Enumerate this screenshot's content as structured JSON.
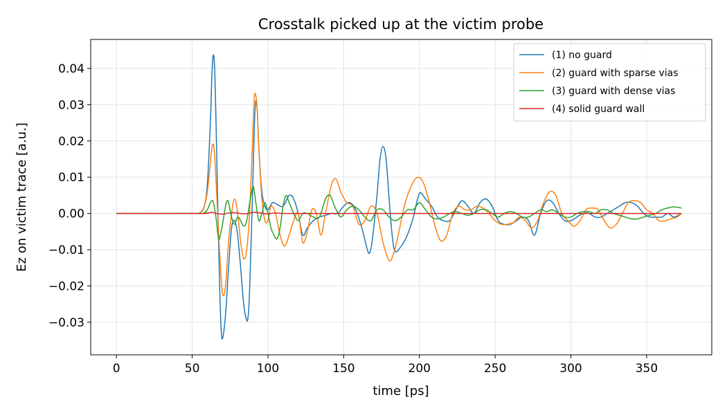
{
  "chart_data": {
    "type": "line",
    "title": "Crosstalk picked up at the victim probe",
    "xlabel": "time [ps]",
    "ylabel": "Ez on victim trace [a.u.]",
    "xlim": [
      -17,
      393
    ],
    "ylim": [
      -0.039,
      0.048
    ],
    "xticks": [
      0,
      50,
      100,
      150,
      200,
      250,
      300,
      350
    ],
    "xtick_labels": [
      "0",
      "50",
      "100",
      "150",
      "200",
      "250",
      "300",
      "350"
    ],
    "yticks": [
      0.04,
      0.03,
      0.02,
      0.01,
      0.0,
      -0.01,
      -0.02,
      -0.03
    ],
    "ytick_labels": [
      "0.04",
      "0.03",
      "0.02",
      "0.01",
      "0.00",
      "−0.01",
      "−0.02",
      "−0.03"
    ],
    "grid": true,
    "legend_position": "top-right",
    "series": [
      {
        "name": "(1) no guard",
        "color": "#1f77b4",
        "x": [
          0,
          50,
          55,
          58,
          60,
          62,
          63,
          64,
          65,
          66,
          67,
          68,
          69,
          70,
          72,
          74,
          76,
          78,
          80,
          82,
          84,
          86,
          87,
          88,
          90,
          91,
          92,
          93,
          94,
          96,
          98,
          100,
          103,
          106,
          110,
          114,
          117,
          120,
          123,
          126,
          130,
          134,
          138,
          142,
          146,
          150,
          154,
          158,
          162,
          165,
          167,
          169,
          172,
          174,
          176,
          178,
          180,
          182,
          184,
          188,
          192,
          196,
          200,
          204,
          208,
          212,
          216,
          220,
          224,
          228,
          232,
          236,
          240,
          244,
          248,
          252,
          256,
          260,
          264,
          268,
          272,
          276,
          280,
          284,
          288,
          292,
          296,
          300,
          304,
          308,
          312,
          316,
          320,
          324,
          328,
          332,
          336,
          340,
          344,
          348,
          352,
          356,
          360,
          364,
          368,
          373
        ],
        "y": [
          0,
          0,
          0.0002,
          0.002,
          0.008,
          0.025,
          0.038,
          0.0438,
          0.038,
          0.02,
          0.0,
          -0.018,
          -0.031,
          -0.0345,
          -0.028,
          -0.015,
          -0.004,
          -0.002,
          -0.006,
          -0.015,
          -0.025,
          -0.0295,
          -0.028,
          -0.02,
          0.008,
          0.024,
          0.031,
          0.028,
          0.018,
          0.006,
          0.002,
          0.001,
          0.003,
          0.0025,
          0.002,
          0.005,
          0.004,
          0.0,
          -0.006,
          -0.004,
          -0.002,
          -0.001,
          -0.0005,
          0.0,
          0.0,
          0.002,
          0.003,
          0.001,
          -0.004,
          -0.009,
          -0.011,
          -0.007,
          0.005,
          0.015,
          0.0185,
          0.015,
          0.004,
          -0.006,
          -0.0105,
          -0.009,
          -0.006,
          -0.001,
          0.0055,
          0.004,
          0.002,
          -0.001,
          -0.002,
          -0.002,
          0.001,
          0.0035,
          0.002,
          0.0,
          0.003,
          0.004,
          0.002,
          -0.002,
          -0.003,
          -0.003,
          -0.002,
          -0.001,
          -0.002,
          -0.006,
          0.0,
          0.0035,
          0.003,
          0.0,
          -0.002,
          -0.002,
          -0.001,
          0.0,
          0.0,
          -0.001,
          -0.001,
          0.0,
          0.001,
          0.002,
          0.003,
          0.003,
          0.002,
          0.0,
          -0.001,
          -0.001,
          -0.001,
          0.0,
          -0.001,
          0.0
        ]
      },
      {
        "name": "(2) guard with sparse vias",
        "color": "#ff7f0e",
        "x": [
          0,
          50,
          55,
          58,
          60,
          62,
          63,
          64,
          65,
          66,
          68,
          70,
          72,
          74,
          76,
          78,
          80,
          82,
          84,
          86,
          88,
          90,
          91,
          92,
          93,
          94,
          96,
          98,
          100,
          102,
          105,
          108,
          111,
          114,
          117,
          120,
          123,
          126,
          129,
          132,
          135,
          138,
          142,
          145,
          148,
          152,
          156,
          160,
          164,
          168,
          172,
          176,
          180,
          183,
          186,
          190,
          194,
          198,
          202,
          206,
          210,
          214,
          218,
          222,
          226,
          230,
          234,
          238,
          242,
          246,
          250,
          254,
          258,
          262,
          266,
          270,
          274,
          278,
          282,
          286,
          290,
          294,
          298,
          302,
          306,
          310,
          314,
          318,
          322,
          326,
          330,
          334,
          338,
          342,
          346,
          350,
          354,
          358,
          362,
          366,
          370,
          373
        ],
        "y": [
          0,
          0,
          0.0002,
          0.002,
          0.006,
          0.014,
          0.018,
          0.019,
          0.015,
          0.007,
          -0.01,
          -0.022,
          -0.02,
          -0.008,
          0.0,
          0.004,
          0.0,
          -0.008,
          -0.0125,
          -0.01,
          0.001,
          0.022,
          0.032,
          0.0325,
          0.028,
          0.018,
          0.004,
          -0.002,
          -0.002,
          0.002,
          0.0,
          -0.006,
          -0.009,
          -0.006,
          -0.002,
          0.0,
          -0.008,
          -0.005,
          0.001,
          0.0,
          -0.006,
          0.0,
          0.008,
          0.0095,
          0.006,
          0.003,
          0.002,
          -0.003,
          -0.002,
          0.002,
          0.0,
          -0.008,
          -0.013,
          -0.011,
          -0.006,
          0.002,
          0.007,
          0.0098,
          0.009,
          0.004,
          -0.003,
          -0.0075,
          -0.006,
          0.0,
          0.002,
          0.001,
          0.001,
          0.002,
          0.0015,
          0.0,
          -0.002,
          -0.003,
          -0.003,
          -0.0025,
          -0.001,
          -0.002,
          -0.004,
          -0.002,
          0.003,
          0.006,
          0.005,
          0.0,
          -0.002,
          -0.0035,
          -0.002,
          0.001,
          0.0015,
          0.001,
          -0.002,
          -0.004,
          -0.003,
          0.0,
          0.003,
          0.0035,
          0.003,
          0.001,
          0.0,
          -0.002,
          -0.002,
          -0.0015,
          -0.001,
          0.0
        ]
      },
      {
        "name": "(3) guard with dense vias",
        "color": "#2ca02c",
        "x": [
          0,
          55,
          58,
          60,
          62,
          63,
          64,
          66,
          67,
          68,
          70,
          72,
          73,
          74,
          76,
          78,
          80,
          82,
          84,
          86,
          88,
          90,
          91,
          92,
          94,
          96,
          98,
          100,
          102,
          104,
          106,
          108,
          110,
          112,
          114,
          117,
          120,
          123,
          126,
          130,
          134,
          138,
          141,
          144,
          148,
          152,
          156,
          160,
          164,
          168,
          172,
          176,
          180,
          184,
          188,
          192,
          196,
          200,
          204,
          208,
          212,
          216,
          220,
          224,
          228,
          232,
          236,
          240,
          244,
          248,
          252,
          256,
          260,
          264,
          268,
          272,
          276,
          280,
          284,
          288,
          292,
          296,
          300,
          304,
          308,
          312,
          316,
          320,
          324,
          328,
          332,
          336,
          340,
          344,
          348,
          352,
          356,
          360,
          364,
          368,
          373
        ],
        "y": [
          0,
          0,
          0.0003,
          0.001,
          0.003,
          0.0035,
          0.003,
          -0.002,
          -0.006,
          -0.007,
          -0.003,
          0.002,
          0.0035,
          0.003,
          -0.001,
          -0.003,
          -0.001,
          -0.002,
          -0.0035,
          -0.002,
          0.003,
          0.0075,
          0.006,
          0.003,
          -0.002,
          0.0,
          0.003,
          0.0,
          -0.004,
          -0.006,
          -0.007,
          -0.004,
          0.002,
          0.005,
          0.003,
          0.0,
          -0.002,
          0.0,
          0.0,
          -0.001,
          -0.001,
          0.004,
          0.005,
          0.002,
          -0.001,
          0.001,
          0.002,
          0.001,
          -0.001,
          -0.002,
          0.001,
          0.001,
          -0.001,
          -0.002,
          -0.001,
          0.001,
          0.001,
          0.003,
          0.001,
          -0.001,
          -0.0015,
          -0.001,
          0.0,
          0.0005,
          0.0,
          -0.0005,
          0.0,
          0.001,
          0.001,
          0.0,
          -0.001,
          0.0,
          0.0005,
          0.0,
          -0.001,
          -0.001,
          0.0,
          0.001,
          0.0005,
          0.001,
          0.0,
          -0.001,
          -0.001,
          0.0,
          0.0005,
          0.0005,
          0.0,
          0.001,
          0.001,
          0.0,
          -0.0005,
          -0.001,
          -0.0015,
          -0.0015,
          -0.001,
          -0.0005,
          0.0,
          0.001,
          0.0015,
          0.0018,
          0.0015
        ]
      },
      {
        "name": "(4) solid guard wall",
        "color": "#d62728",
        "x": [
          0,
          55,
          60,
          63,
          66,
          70,
          74,
          78,
          82,
          86,
          90,
          94,
          98,
          102,
          106,
          110,
          120,
          140,
          160,
          200,
          250,
          300,
          350,
          373
        ],
        "y": [
          0,
          0,
          0.0001,
          0.0003,
          0.0,
          -0.0002,
          0.0001,
          0.0002,
          0.0,
          -0.0001,
          0.0003,
          0.0002,
          -0.0001,
          0.0,
          0.0001,
          0.0,
          0.0,
          0.0,
          0.0,
          0.0,
          0.0,
          0.0,
          0.0,
          0.0
        ]
      }
    ]
  }
}
